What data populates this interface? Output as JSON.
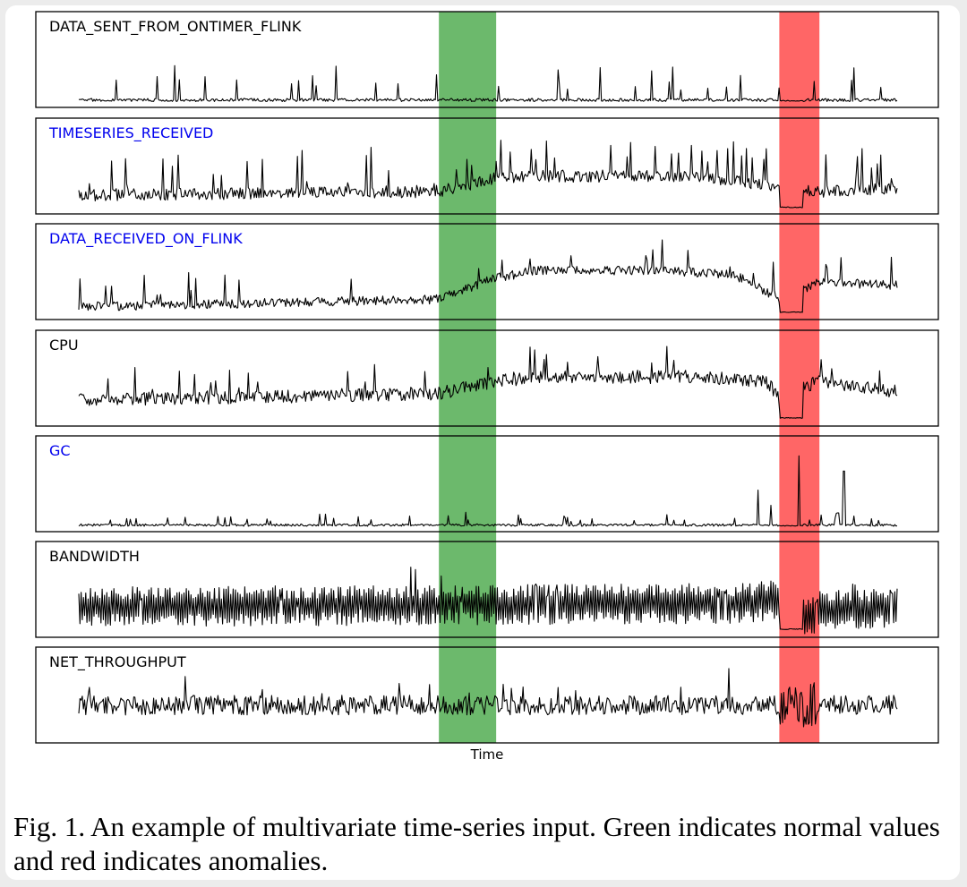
{
  "figure": {
    "caption": "Fig. 1.  An example of multivariate time-series input. Green indicates normal values and red indicates anomalies.",
    "xlabel": "Time"
  },
  "colors": {
    "normal_region": "#2e9b2e",
    "anomaly_region": "#ff3333",
    "highlight_label": "#0000ee",
    "default_label": "#000000",
    "line": "#000000"
  },
  "chart_data": {
    "type": "line",
    "x_range": [
      0,
      1000
    ],
    "y_range": [
      0,
      1
    ],
    "grid": false,
    "legend": "none",
    "regions": [
      {
        "type": "normal",
        "color": "green",
        "x_start": 440,
        "x_end": 510
      },
      {
        "type": "anomaly",
        "color": "red",
        "x_start": 856,
        "x_end": 905
      }
    ],
    "series": [
      {
        "name": "DATA_SENT_FROM_ONTIMER_FLINK",
        "label_color": "black",
        "shape": {
          "base": 0.05,
          "noise": 0.02,
          "spike_prob": 0.05,
          "spike_amp": 0.35,
          "drop_level": 0.04,
          "seed": 3
        },
        "values": [
          0.05,
          0.14,
          0.04,
          0.06,
          0.22,
          0.05,
          0.05,
          0.15,
          0.05,
          0.04,
          0.05,
          0.11,
          0.05,
          0.05,
          0.05,
          0.5,
          0.05,
          0.04,
          0.05,
          0.9,
          0.05,
          0.05,
          0.08,
          0.06,
          0.04,
          0.25,
          0.1,
          0.2,
          0.55,
          0.3,
          0.1,
          0.6,
          0.2,
          0.08,
          0.05,
          0.2,
          0.05,
          0.3,
          0.06,
          0.05,
          0.05,
          0.1,
          0.05,
          0.2,
          0.04,
          0.2,
          0.05,
          0.1,
          0.3,
          0.05,
          0.1,
          0.2,
          0.05,
          0.3,
          0.05,
          0.1,
          0.5,
          0.05,
          0.4,
          0.05,
          0.2,
          0.05,
          0.1,
          0.04,
          0.04,
          0.04,
          0.3,
          0.05,
          0.15,
          0.4,
          0.5,
          0.25,
          0.1,
          0.45,
          0.1,
          0.05
        ]
      },
      {
        "name": "TIMESERIES_RECEIVED",
        "label_color": "blue",
        "shape": {
          "base": 0.2,
          "noise": 0.08,
          "spike_prob": 0.06,
          "spike_amp": 0.4,
          "trend": [
            [
              0,
              0.2
            ],
            [
              440,
              0.25
            ],
            [
              510,
              0.42
            ],
            [
              560,
              0.45
            ],
            [
              760,
              0.45
            ],
            [
              856,
              0.3
            ],
            [
              905,
              0.25
            ],
            [
              1000,
              0.3
            ]
          ],
          "drop_level": 0.04,
          "seed": 7
        },
        "values": [
          0.2,
          0.3,
          0.25,
          0.7,
          0.2,
          0.3,
          0.25,
          0.4,
          0.35,
          0.3,
          0.6,
          0.3,
          0.55,
          0.3,
          0.35,
          0.6,
          0.4,
          0.35,
          0.5,
          0.7,
          0.45,
          0.5,
          0.6,
          0.55,
          0.5,
          0.55,
          0.6,
          0.65,
          0.45,
          0.4,
          0.4,
          0.25,
          0.04,
          0.04,
          0.35,
          0.25,
          0.4,
          0.6,
          0.5
        ]
      },
      {
        "name": "DATA_RECEIVED_ON_FLINK",
        "label_color": "blue",
        "shape": {
          "base": 0.15,
          "noise": 0.06,
          "spike_prob": 0.05,
          "spike_amp": 0.3,
          "trend": [
            [
              0,
              0.12
            ],
            [
              440,
              0.22
            ],
            [
              510,
              0.5
            ],
            [
              560,
              0.6
            ],
            [
              700,
              0.6
            ],
            [
              800,
              0.55
            ],
            [
              856,
              0.22
            ],
            [
              905,
              0.45
            ],
            [
              1000,
              0.4
            ]
          ],
          "drop_level": 0.05,
          "seed": 11
        },
        "values": [
          0.2,
          0.15,
          0.4,
          0.15,
          0.2,
          0.35,
          0.2,
          0.4,
          0.2,
          0.6,
          0.25,
          0.5,
          0.45,
          0.6,
          0.55,
          0.8,
          0.6,
          0.7,
          0.9,
          0.7,
          0.6,
          0.65,
          0.7,
          0.55,
          0.4,
          0.2,
          0.05,
          0.05,
          0.5,
          0.4,
          0.35,
          0.4,
          0.6,
          0.3
        ]
      },
      {
        "name": "CPU",
        "label_color": "black",
        "shape": {
          "base": 0.3,
          "noise": 0.09,
          "spike_prob": 0.04,
          "spike_amp": 0.3,
          "trend": [
            [
              0,
              0.3
            ],
            [
              440,
              0.38
            ],
            [
              510,
              0.55
            ],
            [
              560,
              0.6
            ],
            [
              760,
              0.6
            ],
            [
              840,
              0.55
            ],
            [
              856,
              0.3
            ],
            [
              905,
              0.55
            ],
            [
              1000,
              0.4
            ]
          ],
          "drop_level": 0.06,
          "seed": 19
        },
        "values": [
          0.3,
          0.25,
          0.4,
          0.35,
          0.3,
          0.5,
          0.35,
          0.4,
          0.45,
          0.5,
          0.45,
          0.55,
          0.6,
          0.65,
          0.6,
          0.6,
          0.6,
          0.55,
          0.6,
          0.65,
          0.55,
          0.5,
          0.06,
          0.06,
          0.7,
          0.5,
          0.45,
          0.4,
          0.7,
          0.45
        ]
      },
      {
        "name": "GC",
        "label_color": "blue",
        "shape": {
          "base": 0.04,
          "noise": 0.015,
          "spike_prob": 0.06,
          "spike_amp": 0.12,
          "big_spikes": [
            [
              830,
              0.5
            ],
            [
              846,
              0.3
            ],
            [
              880,
              0.95
            ],
            [
              935,
              0.75
            ],
            [
              928,
              0.2
            ]
          ],
          "drop_level": 0.03,
          "seed": 23
        },
        "values": [
          0.04,
          0.05,
          0.08,
          0.04,
          0.05,
          0.1,
          0.05,
          0.04,
          0.12,
          0.05,
          0.04,
          0.06,
          0.05,
          0.04,
          0.5,
          0.3,
          0.95,
          0.04,
          0.75,
          0.04,
          0.05
        ]
      },
      {
        "name": "BANDWIDTH",
        "label_color": "black",
        "shape": {
          "base": 0.35,
          "noise": 0.22,
          "spike_prob": 0.03,
          "spike_amp": 0.3,
          "oscillate": true,
          "trend": [
            [
              0,
              0.35
            ],
            [
              820,
              0.4
            ],
            [
              856,
              0.45
            ],
            [
              870,
              0.1
            ],
            [
              905,
              0.3
            ],
            [
              1000,
              0.35
            ]
          ],
          "drop_level": 0.06,
          "seed": 29
        },
        "values": [
          0.35,
          0.6,
          0.1,
          0.55,
          0.15,
          0.6,
          0.1,
          0.65,
          0.2,
          0.55,
          0.1,
          0.7,
          0.15,
          0.6,
          0.9,
          0.06,
          0.1,
          0.55,
          0.2,
          0.6
        ]
      },
      {
        "name": "NET_THROUGHPUT",
        "label_color": "black",
        "shape": {
          "base": 0.45,
          "noise": 0.13,
          "spike_prob": 0.04,
          "spike_amp": 0.3,
          "trend": [
            [
              0,
              0.45
            ],
            [
              1000,
              0.45
            ]
          ],
          "anomaly_noise": 0.3,
          "seed": 37
        },
        "values": [
          0.45,
          0.55,
          0.35,
          0.6,
          0.4,
          0.5,
          0.45,
          0.55,
          0.35,
          0.6,
          0.9,
          0.05,
          0.85,
          0.3,
          0.5,
          0.45,
          0.6
        ]
      }
    ]
  }
}
